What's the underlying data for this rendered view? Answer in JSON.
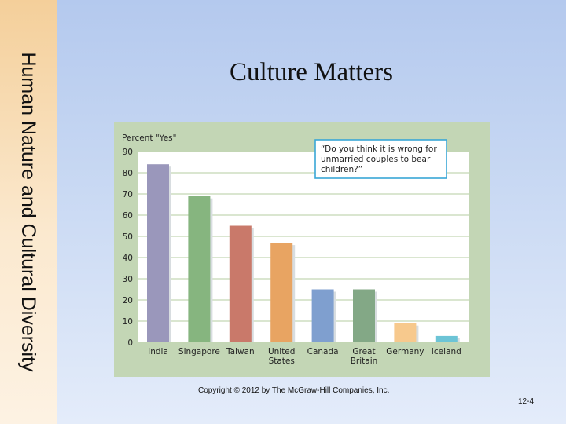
{
  "slide": {
    "side_title": "Human Nature and Cultural Diversity",
    "title": "Culture Matters",
    "copyright": "Copyright © 2012 by The McGraw-Hill Companies, Inc.",
    "slide_number": "12-4"
  },
  "chart_data": {
    "type": "bar",
    "ylabel": "Percent \"Yes\"",
    "annotation": [
      "“Do you think it is wrong for",
      "unmarried couples to bear",
      "children?”"
    ],
    "categories": [
      [
        "India"
      ],
      [
        "Singapore"
      ],
      [
        "Taiwan"
      ],
      [
        "United",
        "States"
      ],
      [
        "Canada"
      ],
      [
        "Great",
        "Britain"
      ],
      [
        "Germany"
      ],
      [
        "Iceland"
      ]
    ],
    "values": [
      84,
      69,
      55,
      47,
      25,
      25,
      9,
      3
    ],
    "colors": [
      "#9a97bb",
      "#86b57f",
      "#c9796a",
      "#e8a462",
      "#7f9fcf",
      "#83a886",
      "#f7c98d",
      "#6cc4d6"
    ],
    "ylim": [
      0,
      90
    ],
    "yticks": [
      0,
      10,
      20,
      30,
      40,
      50,
      60,
      70,
      80,
      90
    ],
    "grid": true
  }
}
